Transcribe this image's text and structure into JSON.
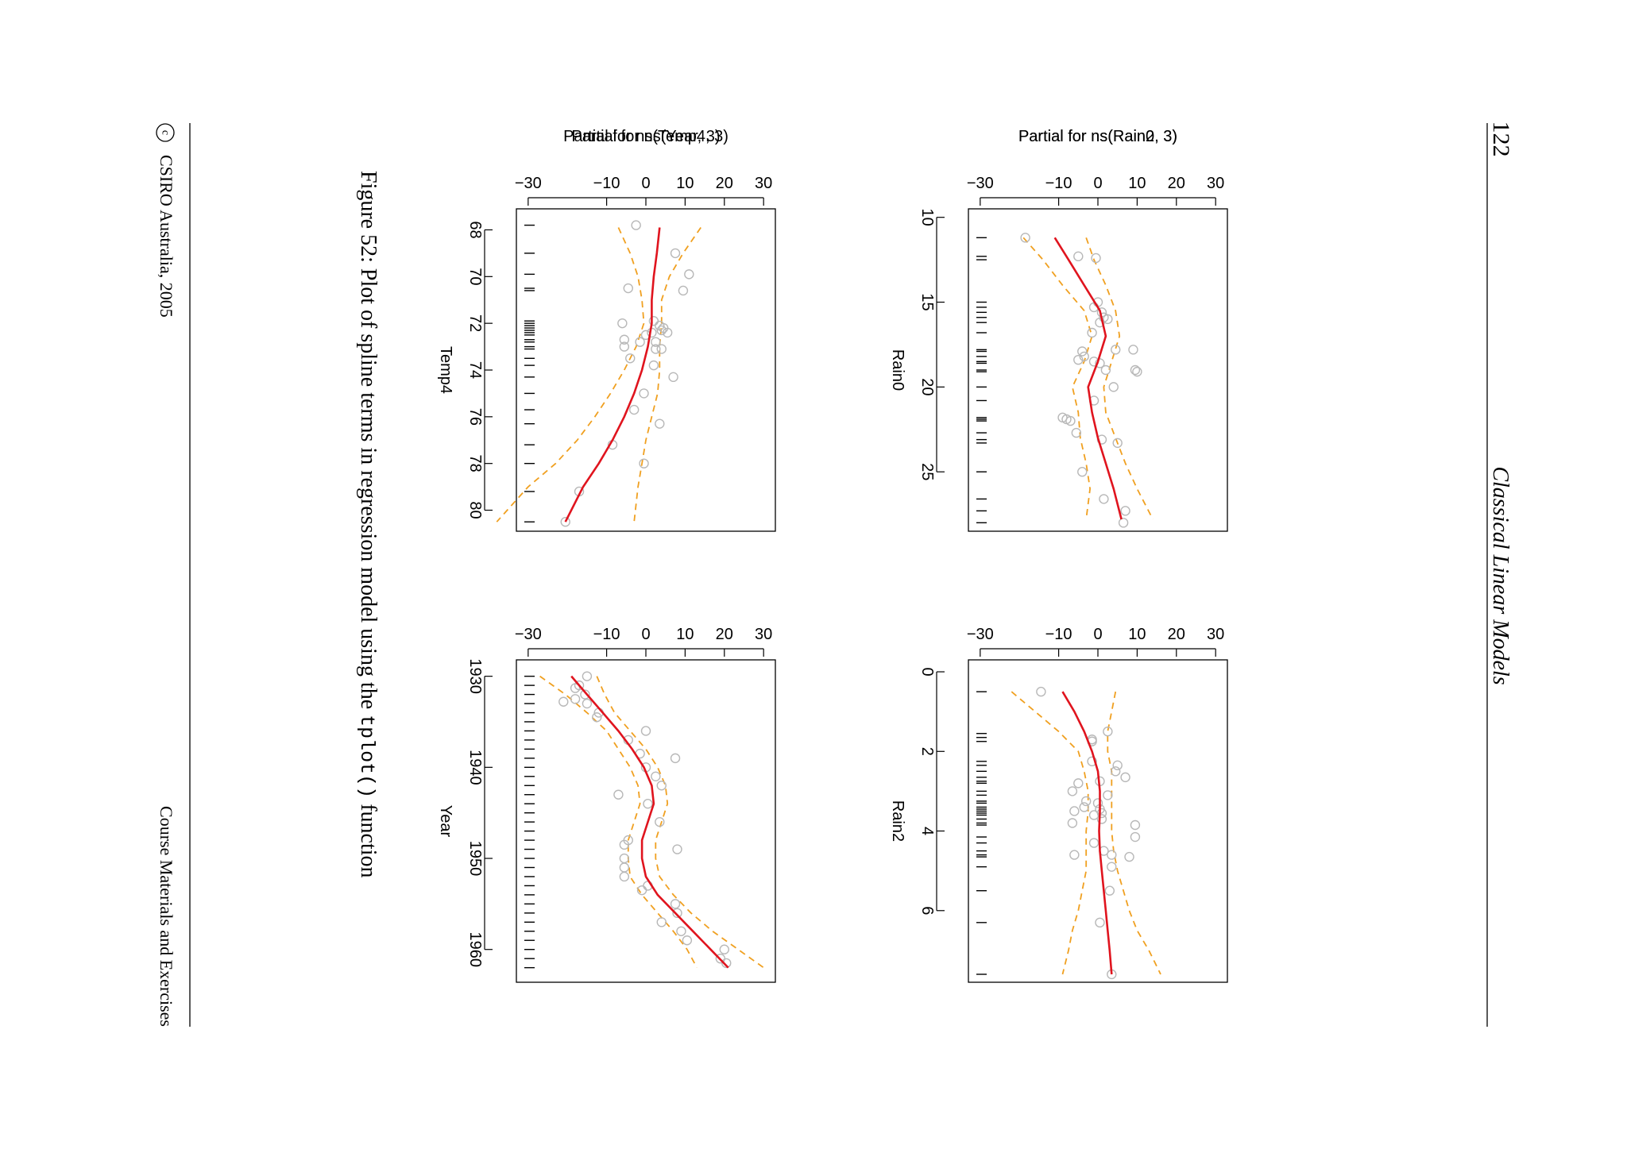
{
  "page": {
    "number": "122",
    "running_title": "Classical Linear Models",
    "footer_left": "CSIRO Australia, 2005",
    "footer_copyright_symbol": "c",
    "footer_right": "Course Materials and Exercises",
    "caption_prefix": "Figure 52: Plot of spline terms in regression model using the",
    "caption_code": "tplot()",
    "caption_suffix": "function"
  },
  "colors": {
    "fit": "#e0141e",
    "band": "#f0a020",
    "points": "#b8b8b8",
    "rug": "#000000"
  },
  "chart_data": [
    {
      "type": "line",
      "title": "Partial for ns(Rain0, 3)",
      "xlabel": "Rain0",
      "xlim": [
        9.5,
        28.5
      ],
      "ylim": [
        -33,
        33
      ],
      "xticks": [
        10,
        15,
        20,
        25
      ],
      "yticks": [
        -30,
        -10,
        0,
        10,
        20,
        30
      ],
      "fit": {
        "x": [
          11.2,
          12.5,
          14,
          15.5,
          17,
          18.5,
          20,
          21.5,
          23,
          24.5,
          26,
          27.8
        ],
        "y": [
          -11,
          -7.5,
          -3.5,
          0.5,
          2,
          0,
          -2.5,
          -1.5,
          0,
          2,
          4,
          6
        ]
      },
      "upper": {
        "x": [
          11.2,
          12.5,
          14,
          15.5,
          17,
          18.5,
          20,
          21.5,
          23,
          24.5,
          26,
          27.8
        ],
        "y": [
          -3,
          -1,
          2,
          4.5,
          5.5,
          3.5,
          1.5,
          2,
          4.5,
          7,
          10,
          14
        ]
      },
      "lower": {
        "x": [
          11.2,
          12.5,
          14,
          15.5,
          17,
          18.5,
          20,
          21.5,
          23,
          24.5,
          26,
          27.8
        ],
        "y": [
          -19,
          -14,
          -9,
          -3.5,
          -1.5,
          -3.5,
          -6.5,
          -5,
          -4.5,
          -3,
          -2,
          -3
        ]
      },
      "points": {
        "x": [
          11.2,
          12.3,
          12.4,
          15,
          15.3,
          15.6,
          15.9,
          16,
          16.2,
          16.8,
          17.8,
          17.8,
          17.9,
          18.2,
          18.4,
          18.5,
          18.6,
          19,
          19,
          19.1,
          20,
          20.8,
          21.8,
          21.9,
          22,
          22.7,
          23.1,
          23.3,
          25,
          26.6,
          27.3,
          28
        ],
        "y": [
          -18.5,
          -5,
          -0.5,
          0,
          -1,
          1,
          1.5,
          2.5,
          0.5,
          -1.5,
          9,
          4.5,
          -4,
          -3.5,
          -5,
          -1,
          0.5,
          2,
          9.5,
          10,
          4,
          -1,
          -9,
          -8,
          -7,
          -5.5,
          1,
          5,
          -4,
          1.5,
          7,
          6.5
        ]
      },
      "rug": [
        11.2,
        12.3,
        12.5,
        15,
        15.3,
        15.6,
        15.9,
        16.2,
        16.8,
        17.8,
        17.9,
        18.2,
        18.5,
        18.6,
        19,
        19.1,
        20,
        20.8,
        21.8,
        21.9,
        22,
        22.7,
        23.1,
        23.3,
        25,
        26.6,
        27.3,
        28
      ]
    },
    {
      "type": "line",
      "title": "Partial for ns(Rain2, 3)",
      "xlabel": "Rain2",
      "xlim": [
        -0.3,
        7.8
      ],
      "ylim": [
        -33,
        33
      ],
      "xticks": [
        0,
        2,
        4,
        6
      ],
      "yticks": [
        -30,
        -10,
        0,
        10,
        20,
        30
      ],
      "fit": {
        "x": [
          0.5,
          1,
          1.5,
          2,
          2.5,
          3,
          3.5,
          4,
          4.5,
          5,
          5.5,
          6,
          6.5,
          7,
          7.6
        ],
        "y": [
          -9,
          -6,
          -3.5,
          -1.5,
          0,
          0.5,
          0.5,
          0.3,
          0.5,
          1,
          1.5,
          2,
          2.5,
          3,
          3.5
        ]
      },
      "upper": {
        "x": [
          0.5,
          1,
          1.5,
          2,
          2.5,
          3,
          3.5,
          4,
          4.5,
          5,
          5.5,
          6,
          6.5,
          7,
          7.6
        ],
        "y": [
          4.5,
          3.5,
          2.5,
          2.5,
          3.5,
          3.5,
          3.5,
          3.5,
          4,
          5,
          6.5,
          8,
          10,
          13,
          16
        ]
      },
      "lower": {
        "x": [
          0.5,
          1,
          1.5,
          2,
          2.5,
          3,
          3.5,
          4,
          4.5,
          5,
          5.5,
          6,
          6.5,
          7,
          7.6
        ],
        "y": [
          -22,
          -16,
          -10,
          -5,
          -3.5,
          -2.5,
          -2.5,
          -3,
          -3,
          -3,
          -4,
          -5,
          -6.5,
          -7.5,
          -9
        ]
      },
      "points": {
        "x": [
          0.5,
          1.5,
          1.7,
          1.75,
          2.25,
          2.35,
          2.5,
          2.65,
          2.75,
          2.8,
          3,
          3.1,
          3.25,
          3.3,
          3.4,
          3.45,
          3.5,
          3.55,
          3.6,
          3.7,
          3.8,
          3.85,
          4.15,
          4.3,
          4.5,
          4.6,
          4.6,
          4.65,
          4.9,
          5.5,
          6.3,
          7.6
        ],
        "y": [
          -14.5,
          2.5,
          -1.5,
          -1.5,
          -1.5,
          5,
          4.5,
          7,
          0.5,
          -5,
          -6.5,
          2.5,
          -3,
          0,
          -3.5,
          0.5,
          -6,
          1,
          -1,
          1,
          -6.5,
          9.5,
          9.5,
          -1,
          1.5,
          -6,
          3.5,
          8,
          3.5,
          3,
          0.5,
          3.5
        ]
      },
      "rug": [
        0.5,
        1.55,
        1.65,
        1.75,
        2.25,
        2.35,
        2.5,
        2.65,
        2.75,
        2.8,
        3,
        3.1,
        3.25,
        3.3,
        3.4,
        3.45,
        3.5,
        3.55,
        3.6,
        3.7,
        3.8,
        3.85,
        4.15,
        4.3,
        4.5,
        4.6,
        4.65,
        4.9,
        5.5,
        6.3,
        7.6
      ]
    },
    {
      "type": "line",
      "title": "Partial for ns(Temp4, 3)",
      "xlabel": "Temp4",
      "xlim": [
        67.1,
        80.9
      ],
      "ylim": [
        -33,
        33
      ],
      "xticks": [
        68,
        70,
        72,
        74,
        76,
        78,
        80
      ],
      "yticks": [
        -30,
        -10,
        0,
        10,
        20,
        30
      ],
      "fit": {
        "x": [
          67.9,
          69,
          70,
          71,
          72,
          73,
          74,
          75,
          76,
          77,
          78,
          79,
          80.5
        ],
        "y": [
          3.5,
          2.8,
          2,
          1.5,
          1.5,
          0.5,
          -1,
          -3,
          -5.5,
          -8.5,
          -12,
          -16,
          -20.5
        ]
      },
      "upper": {
        "x": [
          67.9,
          69,
          70,
          71,
          72,
          73,
          74,
          75,
          76,
          77,
          78,
          79,
          80.5
        ],
        "y": [
          14,
          9.5,
          6,
          4,
          4,
          3.5,
          3.5,
          3,
          1.5,
          0,
          -1,
          -2,
          -3
        ]
      },
      "lower": {
        "x": [
          67.9,
          69,
          70,
          71,
          72,
          73,
          74,
          75,
          76,
          77,
          78,
          79,
          80.5
        ],
        "y": [
          -7,
          -4,
          -2,
          -1,
          -0.5,
          -2.5,
          -5.5,
          -9,
          -13,
          -17.5,
          -23,
          -30,
          -38
        ]
      },
      "points": {
        "x": [
          67.8,
          69,
          69.9,
          70.5,
          70.6,
          71.9,
          72,
          72.1,
          72.2,
          72.3,
          72.4,
          72.4,
          72.5,
          72.7,
          72.8,
          72.8,
          73,
          73.1,
          73.1,
          73.5,
          73.8,
          74.3,
          75,
          75.7,
          76.3,
          77.2,
          78,
          79.2,
          80.5
        ],
        "y": [
          -2.5,
          7.5,
          11,
          -4.5,
          9.5,
          2,
          -6,
          3.5,
          4.5,
          4,
          1.5,
          5.5,
          0,
          -5.5,
          -1.5,
          2.5,
          -5.5,
          2.5,
          4,
          -4,
          2,
          7,
          -0.5,
          -3,
          3.5,
          -8.5,
          -0.5,
          -17,
          -20.5
        ]
      },
      "rug": [
        67.8,
        69,
        69.9,
        70.5,
        70.6,
        71.9,
        72,
        72.1,
        72.2,
        72.3,
        72.4,
        72.5,
        72.7,
        72.8,
        73,
        73.1,
        73.5,
        73.8,
        74.3,
        75,
        75.7,
        76.3,
        77.2,
        78,
        79.2,
        80.5
      ]
    },
    {
      "type": "line",
      "title": "Partial for ns(Year, 3)",
      "xlabel": "Year",
      "xlim": [
        1928.2,
        1963.6
      ],
      "ylim": [
        -33,
        33
      ],
      "xticks": [
        1930,
        1940,
        1950,
        1960
      ],
      "yticks": [
        -30,
        -10,
        0,
        10,
        20,
        30
      ],
      "fit": {
        "x": [
          1930,
          1932,
          1934,
          1936,
          1938,
          1940,
          1942,
          1944,
          1946,
          1948,
          1950,
          1952,
          1954,
          1956,
          1958,
          1960,
          1962
        ],
        "y": [
          -19,
          -15,
          -11,
          -7,
          -3.5,
          -0.5,
          1.5,
          2,
          0.5,
          -1,
          -1,
          0,
          3,
          7.5,
          12,
          16.5,
          21
        ]
      },
      "upper": {
        "x": [
          1930,
          1932,
          1934,
          1936,
          1938,
          1940,
          1942,
          1944,
          1946,
          1948,
          1950,
          1952,
          1954,
          1956,
          1958,
          1960,
          1962
        ],
        "y": [
          -12.5,
          -10.5,
          -8,
          -4,
          0,
          3,
          5,
          5.5,
          4,
          2.5,
          2.5,
          3.5,
          7,
          11.5,
          17,
          23.5,
          30
        ]
      },
      "lower": {
        "x": [
          1930,
          1932,
          1934,
          1936,
          1938,
          1940,
          1942,
          1944,
          1946,
          1948,
          1950,
          1952,
          1954,
          1956,
          1958,
          1960,
          1962
        ],
        "y": [
          -27,
          -20.5,
          -15,
          -10,
          -7,
          -4,
          -2,
          -1.5,
          -3,
          -4.5,
          -4.5,
          -4,
          -1,
          3,
          7,
          10.5,
          13
        ]
      },
      "points": {
        "x": [
          1930,
          1931,
          1931.3,
          1932,
          1932.5,
          1932.8,
          1933,
          1934,
          1934.5,
          1936,
          1937,
          1938.5,
          1939,
          1940,
          1941,
          1942,
          1943,
          1944,
          1946,
          1948,
          1948.5,
          1949,
          1950,
          1951,
          1952,
          1953,
          1953.5,
          1955,
          1956,
          1957,
          1958,
          1959,
          1960,
          1961,
          1961.5
        ],
        "y": [
          -15,
          -17,
          -18,
          -15.5,
          -18,
          -21,
          -15,
          -12,
          -12.5,
          0,
          -4.5,
          -1.5,
          7.5,
          0,
          2.5,
          4,
          -7,
          0.5,
          3.5,
          -4.5,
          -5.5,
          8,
          -5.5,
          -5.5,
          -5.5,
          0.5,
          -1,
          7.5,
          8,
          4,
          9,
          10.5,
          20,
          19,
          20.5
        ]
      },
      "rug": [
        1930,
        1931,
        1932,
        1933,
        1934,
        1935,
        1936,
        1937,
        1938,
        1939,
        1940,
        1941,
        1942,
        1943,
        1944,
        1945,
        1946,
        1947,
        1948,
        1949,
        1950,
        1951,
        1952,
        1953,
        1954,
        1955,
        1956,
        1957,
        1958,
        1959,
        1960,
        1961,
        1962
      ]
    }
  ]
}
